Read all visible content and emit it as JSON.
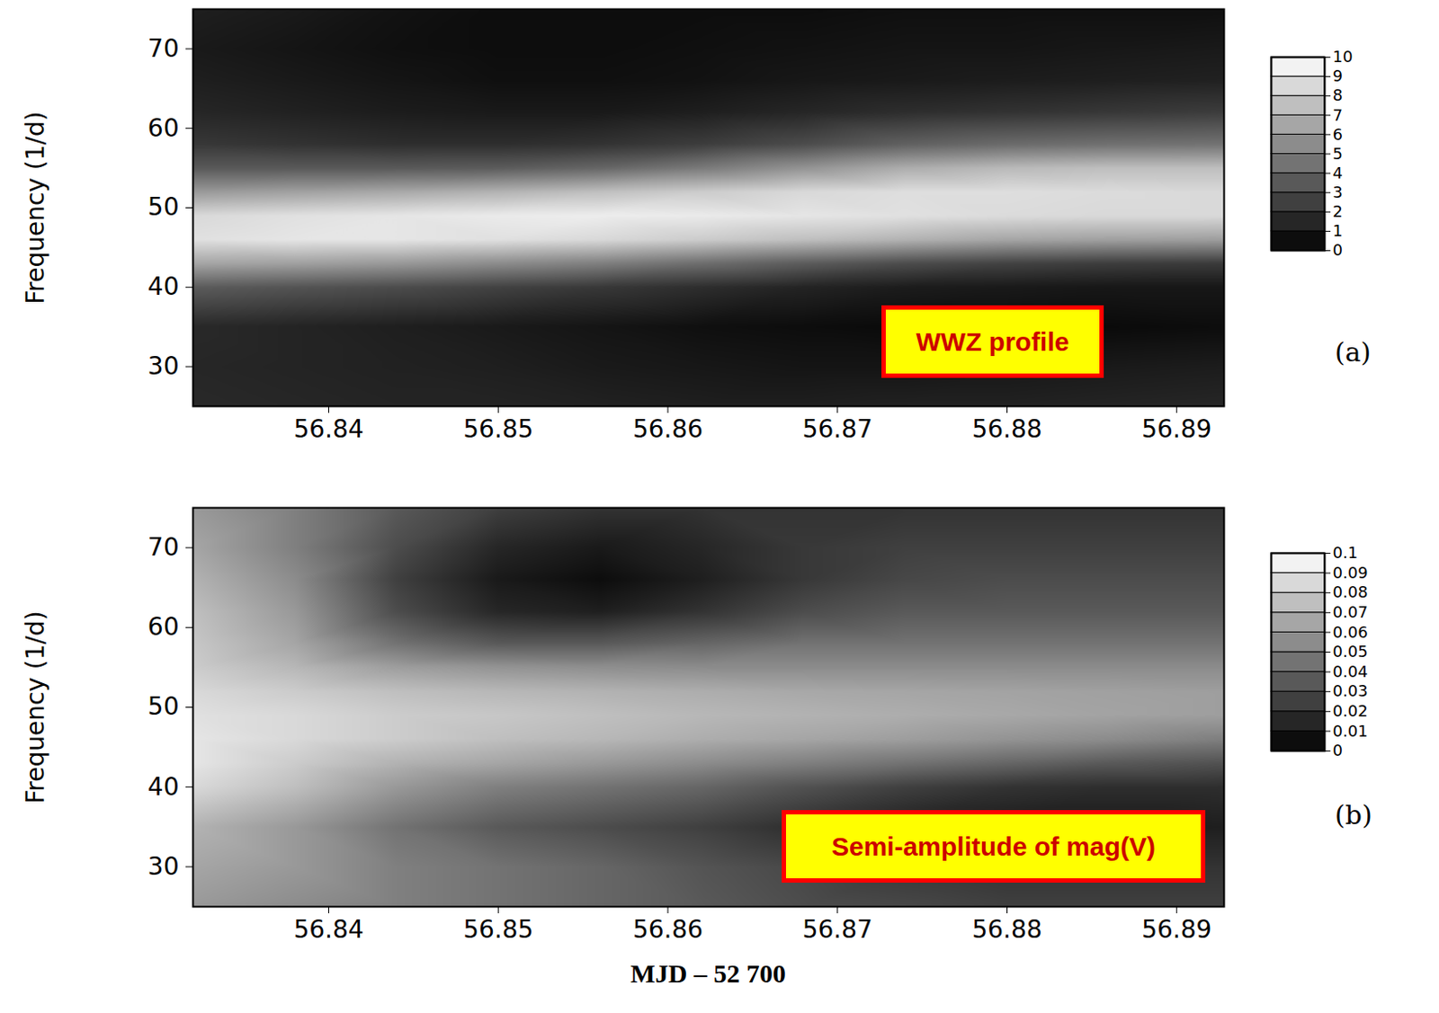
{
  "chart_data": [
    {
      "type": "heatmap",
      "annotation": "WWZ profile",
      "panel_label": "(a)",
      "ylabel": "Frequency (1/d)",
      "x": [
        56.832,
        56.838,
        56.844,
        56.85,
        56.856,
        56.862,
        56.868,
        56.874,
        56.88,
        56.886,
        56.8928
      ],
      "y": [
        25,
        30,
        35,
        40,
        43,
        46,
        49,
        52,
        55,
        58,
        62,
        66,
        70,
        75
      ],
      "cells": [
        [
          1.6,
          1.5,
          1.4,
          1.4,
          1.3,
          1.2,
          1.2,
          1.3,
          1.3,
          1.4,
          1.5
        ],
        [
          1.5,
          1.4,
          1.3,
          1.2,
          1,
          0.9,
          0.8,
          0.8,
          0.9,
          1,
          1.1
        ],
        [
          1.6,
          1.4,
          1.2,
          1,
          0.8,
          0.6,
          0.5,
          0.4,
          0.4,
          0.4,
          0.5
        ],
        [
          3.6,
          3.3,
          3,
          2.6,
          2.2,
          1.8,
          1.4,
          1.1,
          1,
          0.9,
          0.9
        ],
        [
          6.5,
          6.3,
          6,
          5.5,
          5,
          4.3,
          3.6,
          3,
          2.6,
          2.4,
          2.3
        ],
        [
          8.8,
          9,
          9,
          8.8,
          8.5,
          8,
          7.5,
          7,
          6.5,
          6.3,
          6.2
        ],
        [
          8.5,
          8.8,
          9,
          9.2,
          9.3,
          9.2,
          9,
          8.8,
          8.6,
          8.5,
          8.5
        ],
        [
          6,
          6.3,
          6.6,
          7,
          7.5,
          8,
          8.5,
          8.7,
          8.7,
          8.6,
          8.5
        ],
        [
          3.5,
          3.5,
          3.5,
          3.6,
          4,
          4.8,
          5.8,
          6.8,
          7.3,
          7.5,
          7.5
        ],
        [
          2.2,
          2,
          1.8,
          1.8,
          2,
          2.4,
          3,
          3.8,
          4.2,
          4.4,
          4.5
        ],
        [
          1.5,
          1.3,
          1.1,
          1,
          1,
          1.2,
          1.5,
          1.8,
          2,
          2.2,
          2.4
        ],
        [
          1.2,
          1,
          0.8,
          0.6,
          0.6,
          0.7,
          0.9,
          1,
          1.1,
          1.2,
          1.3
        ],
        [
          1,
          0.8,
          0.6,
          0.5,
          0.5,
          0.6,
          0.7,
          0.8,
          0.8,
          0.9,
          1
        ],
        [
          1.2,
          1,
          0.7,
          0.5,
          0.5,
          0.5,
          0.5,
          0.6,
          0.6,
          0.6,
          0.6
        ]
      ],
      "xlim": [
        56.832,
        56.8928
      ],
      "ylim": [
        25,
        75
      ],
      "xticks": [
        56.84,
        56.85,
        56.86,
        56.87,
        56.88,
        56.89
      ],
      "yticks": [
        30,
        40,
        50,
        60,
        70
      ],
      "colorbar": {
        "range": [
          0,
          10
        ],
        "ticks": [
          0,
          1,
          2,
          3,
          4,
          5,
          6,
          7,
          8,
          9,
          10
        ]
      }
    },
    {
      "type": "heatmap",
      "annotation": "Semi-amplitude of mag(V)",
      "panel_label": "(b)",
      "ylabel": "Frequency (1/d)",
      "xlabel": "MJD – 52 700",
      "x": [
        56.832,
        56.838,
        56.844,
        56.85,
        56.856,
        56.862,
        56.868,
        56.874,
        56.88,
        56.886,
        56.8928
      ],
      "y": [
        25,
        30,
        35,
        40,
        43,
        46,
        49,
        52,
        55,
        58,
        62,
        66,
        70,
        75
      ],
      "cells": [
        [
          0.06,
          0.055,
          0.05,
          0.045,
          0.04,
          0.035,
          0.03,
          0.028,
          0.025,
          0.025,
          0.025
        ],
        [
          0.065,
          0.06,
          0.05,
          0.045,
          0.04,
          0.033,
          0.028,
          0.022,
          0.02,
          0.02,
          0.02
        ],
        [
          0.07,
          0.06,
          0.045,
          0.035,
          0.03,
          0.025,
          0.018,
          0.012,
          0.01,
          0.01,
          0.012
        ],
        [
          0.085,
          0.075,
          0.06,
          0.05,
          0.045,
          0.04,
          0.032,
          0.025,
          0.02,
          0.018,
          0.018
        ],
        [
          0.09,
          0.08,
          0.07,
          0.065,
          0.06,
          0.055,
          0.05,
          0.045,
          0.04,
          0.035,
          0.032
        ],
        [
          0.09,
          0.085,
          0.08,
          0.075,
          0.072,
          0.068,
          0.065,
          0.062,
          0.058,
          0.055,
          0.05
        ],
        [
          0.088,
          0.085,
          0.08,
          0.078,
          0.075,
          0.072,
          0.07,
          0.068,
          0.066,
          0.064,
          0.062
        ],
        [
          0.085,
          0.08,
          0.075,
          0.072,
          0.07,
          0.068,
          0.066,
          0.065,
          0.064,
          0.063,
          0.062
        ],
        [
          0.08,
          0.072,
          0.062,
          0.058,
          0.056,
          0.055,
          0.055,
          0.055,
          0.055,
          0.055,
          0.055
        ],
        [
          0.078,
          0.065,
          0.045,
          0.035,
          0.035,
          0.04,
          0.045,
          0.045,
          0.045,
          0.045,
          0.045
        ],
        [
          0.075,
          0.06,
          0.03,
          0.015,
          0.012,
          0.02,
          0.03,
          0.035,
          0.035,
          0.035,
          0.035
        ],
        [
          0.07,
          0.055,
          0.025,
          0.01,
          0.005,
          0.012,
          0.022,
          0.028,
          0.03,
          0.03,
          0.03
        ],
        [
          0.065,
          0.05,
          0.03,
          0.015,
          0.01,
          0.015,
          0.022,
          0.025,
          0.025,
          0.025,
          0.025
        ],
        [
          0.06,
          0.05,
          0.035,
          0.025,
          0.02,
          0.02,
          0.02,
          0.02,
          0.02,
          0.02,
          0.02
        ]
      ],
      "xlim": [
        56.832,
        56.8928
      ],
      "ylim": [
        25,
        75
      ],
      "xticks": [
        56.84,
        56.85,
        56.86,
        56.87,
        56.88,
        56.89
      ],
      "yticks": [
        30,
        40,
        50,
        60,
        70
      ],
      "colorbar": {
        "range": [
          0,
          0.1
        ],
        "ticks": [
          0,
          0.01,
          0.02,
          0.03,
          0.04,
          0.05,
          0.06,
          0.07,
          0.08,
          0.09,
          0.1
        ]
      }
    }
  ]
}
